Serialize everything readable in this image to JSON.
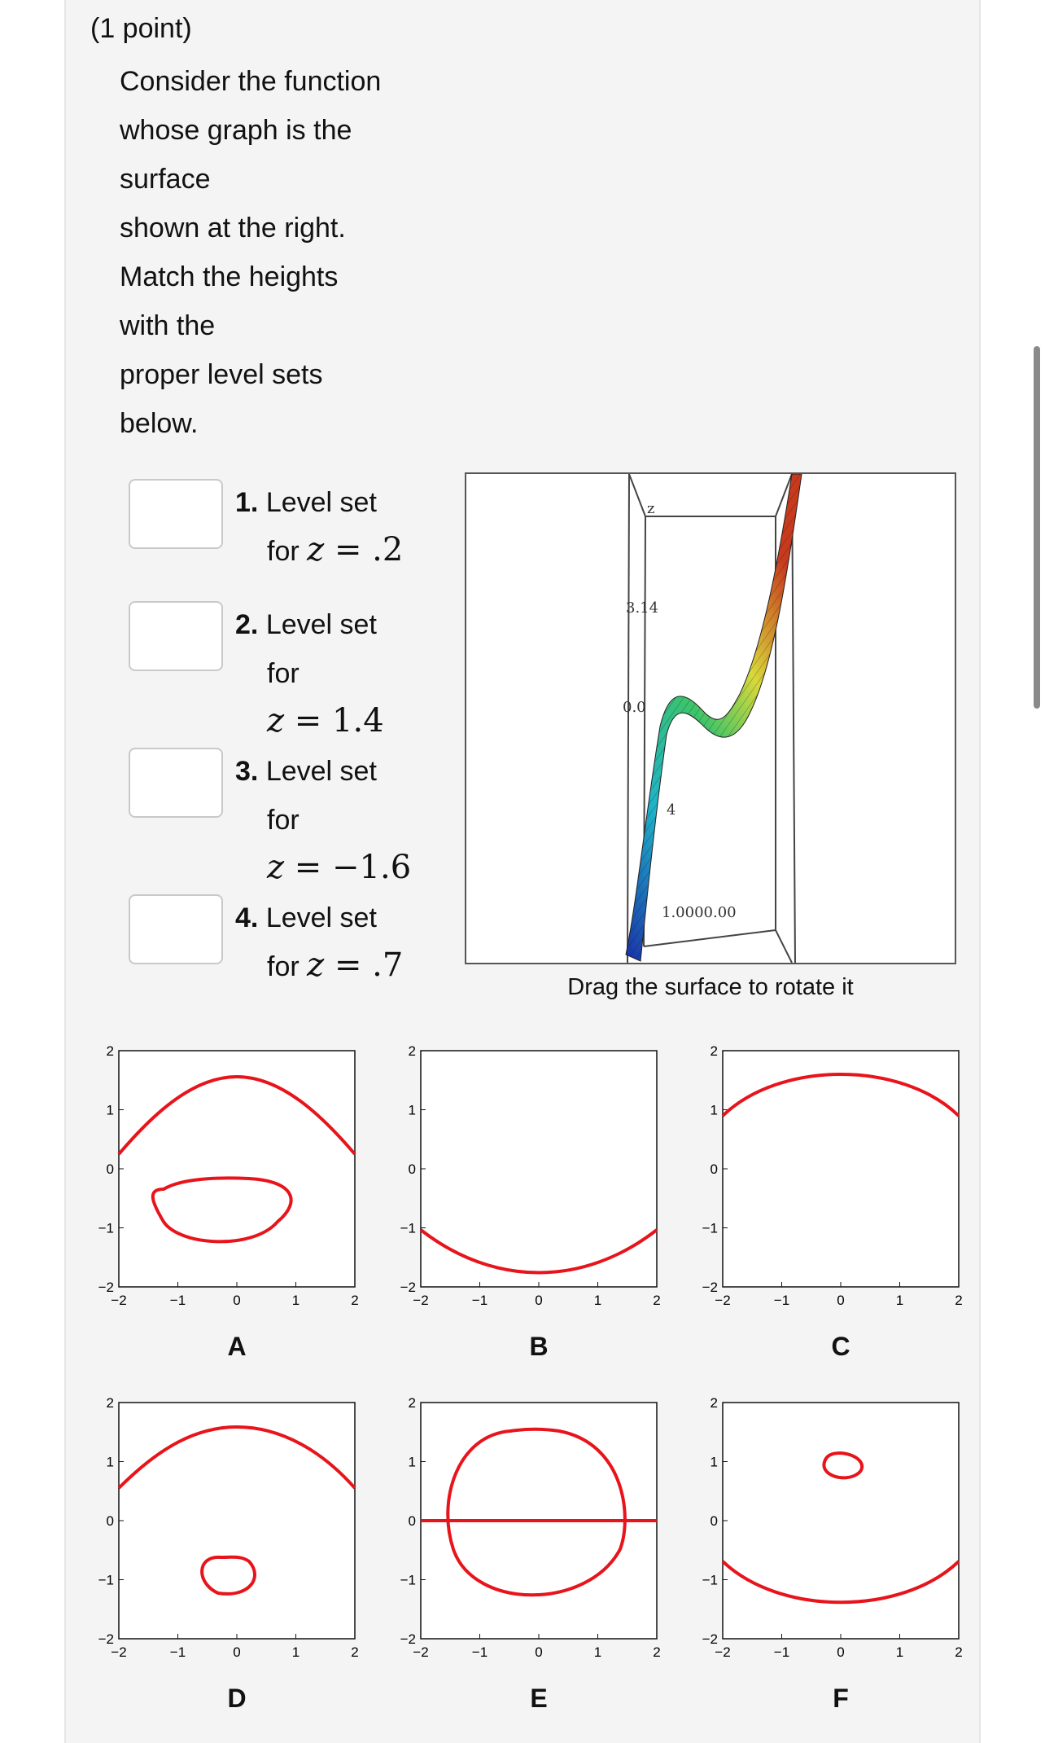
{
  "problem": {
    "points": "(1 point)",
    "prompt_lines": [
      "Consider the function",
      "whose graph is the",
      "surface",
      "shown at the right.",
      "Match the heights",
      "with the",
      "proper level sets",
      "below."
    ]
  },
  "questions": [
    {
      "number": "1.",
      "text_a": "Level set",
      "text_b": "for",
      "z_value": ".2",
      "answer": ""
    },
    {
      "number": "2.",
      "text_a": "Level set",
      "text_b": "for",
      "z_value": "1.4",
      "answer": ""
    },
    {
      "number": "3.",
      "text_a": "Level set",
      "text_b": "for",
      "z_value": "−1.6",
      "answer": ""
    },
    {
      "number": "4.",
      "text_a": "Level set",
      "text_b": "for",
      "z_value": ".7",
      "answer": ""
    }
  ],
  "math_var": "z",
  "math_eq": "=",
  "surface": {
    "caption": "Drag the surface to rotate it",
    "axis_labels": [
      "z",
      "3.14",
      "0.0",
      "4",
      "1.0000.00"
    ]
  },
  "plots": {
    "tick_labels_x": [
      "−2",
      "−1",
      "0",
      "1",
      "2"
    ],
    "tick_labels_y": [
      "2",
      "1",
      "0",
      "−1",
      "−2"
    ],
    "curve_color": "#e8141b",
    "letters": [
      "A",
      "B",
      "C",
      "D",
      "E",
      "F"
    ]
  }
}
